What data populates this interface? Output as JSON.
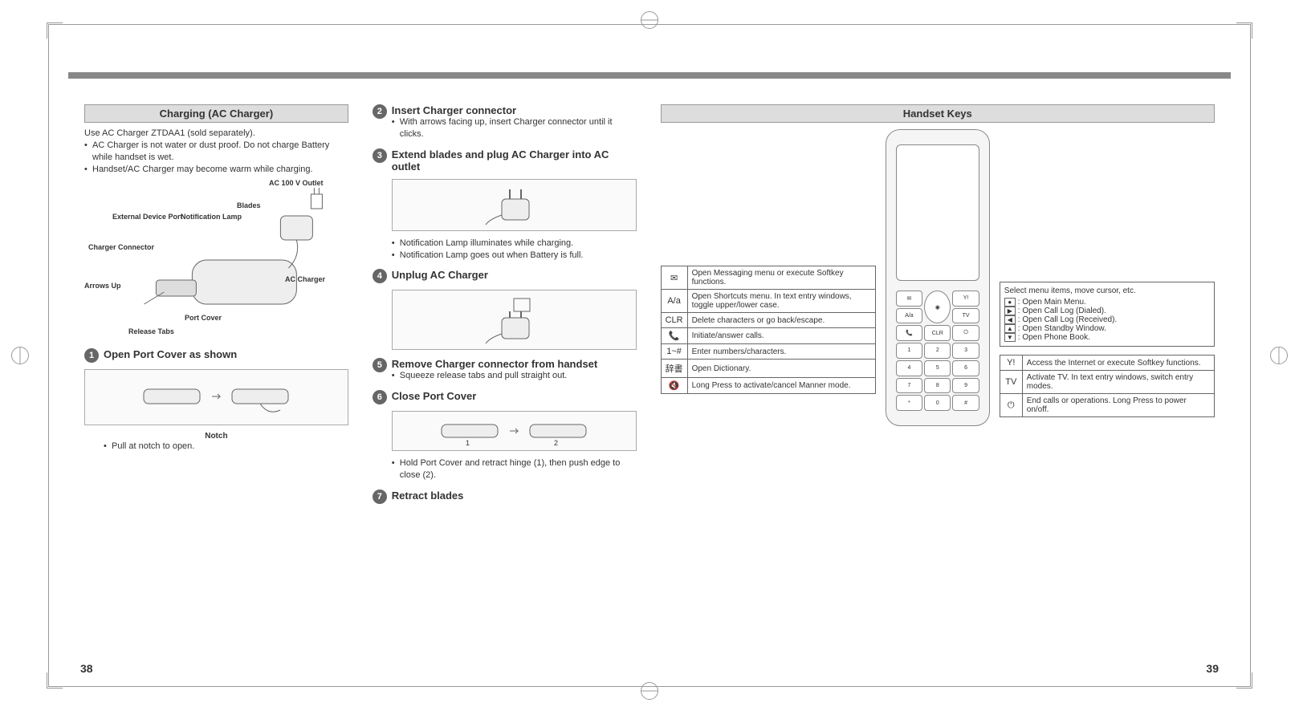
{
  "page_left": "38",
  "page_right": "39",
  "left": {
    "header": "Charging (AC Charger)",
    "intro": "Use AC Charger ZTDAA1 (sold separately).",
    "bullets": [
      "AC Charger is not water or dust proof. Do not charge Battery while handset is wet.",
      "Handset/AC Charger may become warm while charging."
    ],
    "diagram_labels": {
      "ac_outlet": "AC 100 V Outlet",
      "blades": "Blades",
      "ext_port": "External Device Port",
      "notif_lamp": "Notification Lamp",
      "charger_conn": "Charger Connector",
      "arrows_up": "Arrows Up",
      "port_cover": "Port Cover",
      "release_tabs": "Release Tabs",
      "ac_charger": "AC Charger",
      "notch": "Notch"
    },
    "step1": {
      "title": "Open Port Cover as shown",
      "note": "Pull at notch to open."
    }
  },
  "mid": {
    "step2": {
      "title": "Insert Charger connector",
      "note": "With arrows facing up, insert Charger connector until it clicks."
    },
    "step3": {
      "title": "Extend blades and plug AC Charger into AC outlet",
      "notes": [
        "Notification Lamp illuminates while charging.",
        "Notification Lamp goes out when Battery is full."
      ]
    },
    "step4": {
      "title": "Unplug AC Charger"
    },
    "step5": {
      "title": "Remove Charger connector from handset",
      "note": "Squeeze release tabs and pull straight out."
    },
    "step6": {
      "title": "Close Port Cover",
      "note": "Hold Port Cover and retract hinge (1), then push edge to close (2)."
    },
    "step7": {
      "title": "Retract blades"
    }
  },
  "right": {
    "header": "Handset Keys",
    "left_table": [
      {
        "icon": "✉",
        "desc": "Open Messaging menu or execute Softkey functions."
      },
      {
        "icon": "A/a",
        "desc": "Open Shortcuts menu. In text entry windows, toggle upper/lower case."
      },
      {
        "icon": "CLR",
        "desc": "Delete characters or go back/escape."
      },
      {
        "icon": "📞",
        "desc": "Initiate/answer calls."
      },
      {
        "icon": "1~#",
        "desc": "Enter numbers/characters."
      },
      {
        "icon": "辞書",
        "desc": "Open Dictionary."
      },
      {
        "icon": "🔇",
        "desc": "Long Press to activate/cancel Manner mode."
      }
    ],
    "cursor_intro": "Select menu items, move cursor, etc.",
    "cursor_items": [
      {
        "icon": "●",
        "desc": "Open Main Menu."
      },
      {
        "icon": "▶",
        "desc": "Open Call Log (Dialed)."
      },
      {
        "icon": "◀",
        "desc": "Open Call Log (Received)."
      },
      {
        "icon": "▲",
        "desc": "Open Standby Window."
      },
      {
        "icon": "▼",
        "desc": "Open Phone Book."
      }
    ],
    "right_table": [
      {
        "icon": "Y!",
        "desc": "Access the Internet or execute Softkey functions."
      },
      {
        "icon": "TV",
        "desc": "Activate TV. In text entry windows, switch entry modes."
      },
      {
        "icon": "⏻",
        "desc": "End calls or operations. Long Press to power on/off."
      }
    ]
  },
  "colors": {
    "header_bg": "#dddddd",
    "bar": "#888888",
    "border": "#666666"
  }
}
